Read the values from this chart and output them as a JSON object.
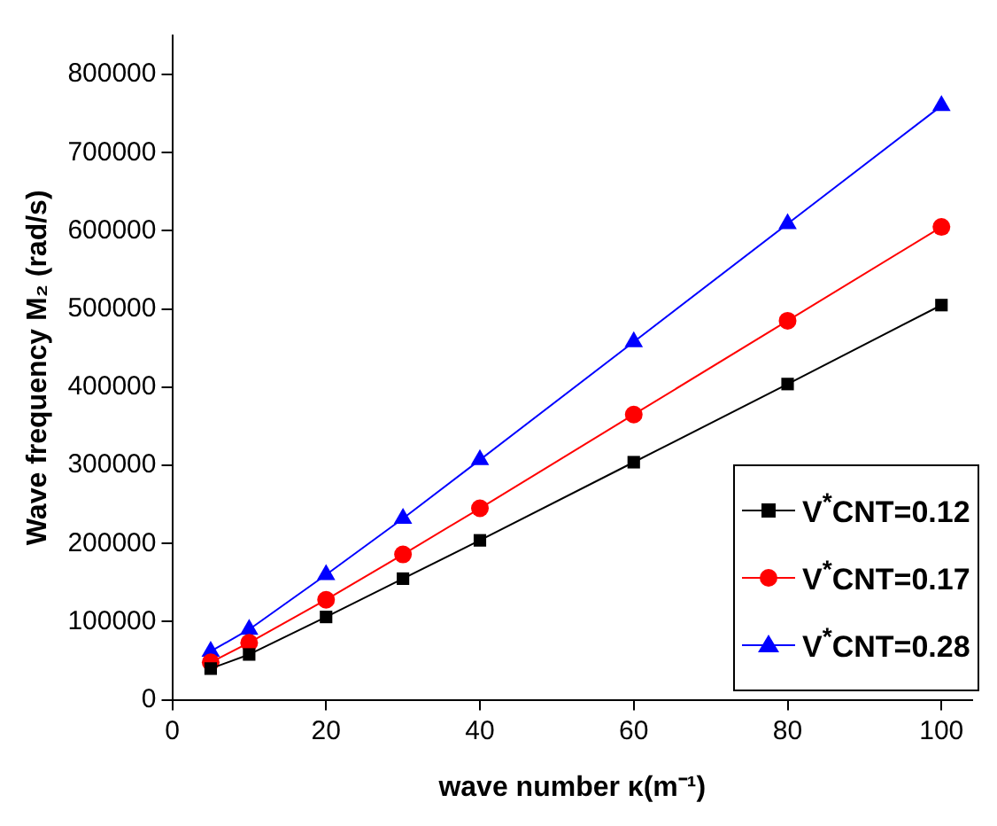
{
  "chart_data": {
    "type": "line",
    "xlabel": "wave number κ(m⁻¹)",
    "ylabel": "Wave frequency M₂ (rad/s)",
    "x": [
      5,
      10,
      20,
      30,
      40,
      60,
      80,
      100
    ],
    "series": [
      {
        "name": "V$^{*}$CNT=0.12",
        "color": "#000000",
        "marker": "square",
        "values": [
          40000,
          58000,
          106000,
          155000,
          204000,
          304000,
          404000,
          505000
        ]
      },
      {
        "name": "V$^{*}$CNT=0.17",
        "color": "#ff0000",
        "marker": "circle",
        "values": [
          48000,
          73000,
          128000,
          186000,
          245000,
          365000,
          485000,
          605000
        ]
      },
      {
        "name": "V$^{*}$CNT=0.28",
        "color": "#0000ff",
        "marker": "triangle",
        "values": [
          62000,
          90000,
          160000,
          232000,
          307000,
          458000,
          609000,
          760000
        ]
      }
    ],
    "xlim": [
      0,
      104
    ],
    "xticks": [
      0,
      20,
      40,
      60,
      80,
      100
    ],
    "ylim": [
      0,
      850000
    ],
    "yticks": [
      0,
      100000,
      200000,
      300000,
      400000,
      500000,
      600000,
      700000,
      800000
    ],
    "grid": false,
    "legend": "bottom right",
    "line_style": "solid"
  }
}
